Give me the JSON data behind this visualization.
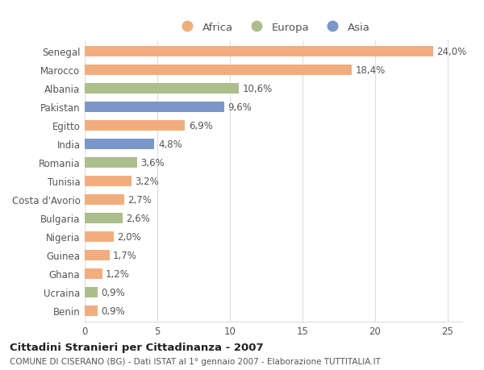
{
  "countries": [
    "Senegal",
    "Marocco",
    "Albania",
    "Pakistan",
    "Egitto",
    "India",
    "Romania",
    "Tunisia",
    "Costa d'Avorio",
    "Bulgaria",
    "Nigeria",
    "Guinea",
    "Ghana",
    "Ucraina",
    "Benin"
  ],
  "values": [
    24.0,
    18.4,
    10.6,
    9.6,
    6.9,
    4.8,
    3.6,
    3.2,
    2.7,
    2.6,
    2.0,
    1.7,
    1.2,
    0.9,
    0.9
  ],
  "labels": [
    "24,0%",
    "18,4%",
    "10,6%",
    "9,6%",
    "6,9%",
    "4,8%",
    "3,6%",
    "3,2%",
    "2,7%",
    "2,6%",
    "2,0%",
    "1,7%",
    "1,2%",
    "0,9%",
    "0,9%"
  ],
  "continents": [
    "Africa",
    "Africa",
    "Europa",
    "Asia",
    "Africa",
    "Asia",
    "Europa",
    "Africa",
    "Africa",
    "Europa",
    "Africa",
    "Africa",
    "Africa",
    "Europa",
    "Africa"
  ],
  "colors": {
    "Africa": "#F2AD7E",
    "Europa": "#ABBE8C",
    "Asia": "#7B96C8"
  },
  "legend_labels": [
    "Africa",
    "Europa",
    "Asia"
  ],
  "xlim": [
    0,
    26
  ],
  "xticks": [
    0,
    5,
    10,
    15,
    20,
    25
  ],
  "title_main": "Cittadini Stranieri per Cittadinanza - 2007",
  "title_sub": "COMUNE DI CISERANO (BG) - Dati ISTAT al 1° gennaio 2007 - Elaborazione TUTTITALIA.IT",
  "bg_color": "#FFFFFF",
  "grid_color": "#DDDDDD",
  "bar_height": 0.55,
  "label_fontsize": 8.5,
  "tick_fontsize": 8.5
}
